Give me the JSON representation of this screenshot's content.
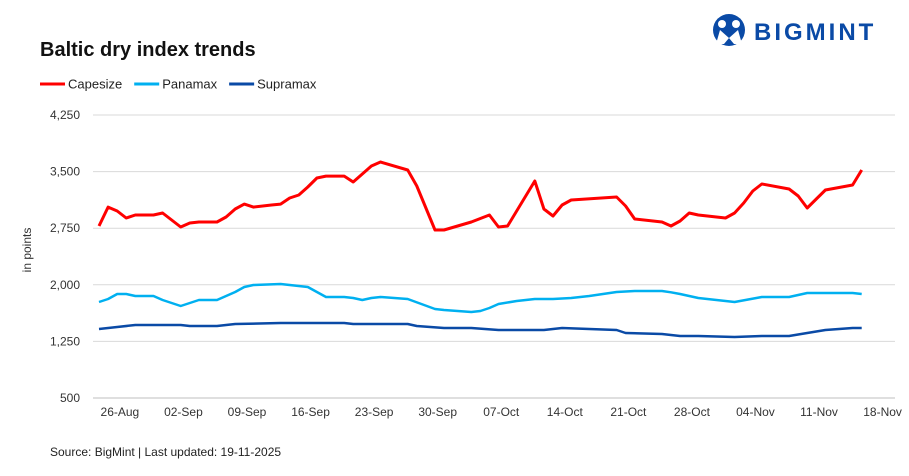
{
  "brand": {
    "name": "BIGMINT",
    "color": "#0a4aa6"
  },
  "chart_data": {
    "type": "line",
    "title": "Baltic dry index trends",
    "xlabel": "",
    "ylabel": "in points",
    "ylim": [
      500,
      4250
    ],
    "yticks": [
      500,
      1250,
      2000,
      2750,
      3500,
      4250
    ],
    "ytick_labels": [
      "500",
      "1,250",
      "2,000",
      "2,750",
      "3,500",
      "4,250"
    ],
    "x_unit": "days from first observation",
    "xlim": [
      0,
      86
    ],
    "xticks": [
      2.3,
      9.3,
      16.3,
      23.3,
      30.3,
      37.3,
      44.3,
      51.3,
      58.3,
      65.3,
      72.3,
      79.3,
      86.3
    ],
    "xtick_labels": [
      "26-Aug",
      "02-Sep",
      "09-Sep",
      "16-Sep",
      "23-Sep",
      "30-Sep",
      "07-Oct",
      "14-Oct",
      "21-Oct",
      "28-Oct",
      "04-Nov",
      "11-Nov",
      "18-Nov"
    ],
    "grid": "horizontal",
    "legend_position": "top-left",
    "series": [
      {
        "name": "Capesize",
        "color": "#ff0000",
        "points": [
          [
            0,
            2779
          ],
          [
            1,
            3030
          ],
          [
            2,
            2978
          ],
          [
            3,
            2885
          ],
          [
            4,
            2925
          ],
          [
            6,
            2925
          ],
          [
            7,
            2951
          ],
          [
            9,
            2766
          ],
          [
            10,
            2819
          ],
          [
            11,
            2832
          ],
          [
            13,
            2832
          ],
          [
            14,
            2898
          ],
          [
            15,
            3004
          ],
          [
            16,
            3070
          ],
          [
            17,
            3030
          ],
          [
            19,
            3057
          ],
          [
            20,
            3070
          ],
          [
            21,
            3150
          ],
          [
            22,
            3190
          ],
          [
            23,
            3296
          ],
          [
            24,
            3415
          ],
          [
            25,
            3441
          ],
          [
            27,
            3441
          ],
          [
            28,
            3362
          ],
          [
            29,
            3468
          ],
          [
            30,
            3574
          ],
          [
            31,
            3627
          ],
          [
            34,
            3521
          ],
          [
            35,
            3309
          ],
          [
            37,
            2726
          ],
          [
            38,
            2726
          ],
          [
            41,
            2832
          ],
          [
            43,
            2925
          ],
          [
            44,
            2766
          ],
          [
            45,
            2779
          ],
          [
            48,
            3375
          ],
          [
            49,
            3004
          ],
          [
            50,
            2912
          ],
          [
            51,
            3057
          ],
          [
            52,
            3124
          ],
          [
            57,
            3163
          ],
          [
            58,
            3044
          ],
          [
            59,
            2872
          ],
          [
            62,
            2832
          ],
          [
            63,
            2779
          ],
          [
            64,
            2845
          ],
          [
            65,
            2951
          ],
          [
            66,
            2925
          ],
          [
            69,
            2885
          ],
          [
            70,
            2951
          ],
          [
            71,
            3084
          ],
          [
            72,
            3243
          ],
          [
            73,
            3336
          ],
          [
            76,
            3269
          ],
          [
            77,
            3177
          ],
          [
            78,
            3018
          ],
          [
            79,
            3137
          ],
          [
            80,
            3256
          ],
          [
            83,
            3322
          ],
          [
            84,
            3521
          ]
        ]
      },
      {
        "name": "Panamax",
        "color": "#00b0f0",
        "points": [
          [
            0,
            1772
          ],
          [
            1,
            1812
          ],
          [
            2,
            1878
          ],
          [
            3,
            1878
          ],
          [
            4,
            1851
          ],
          [
            6,
            1851
          ],
          [
            7,
            1798
          ],
          [
            9,
            1719
          ],
          [
            11,
            1798
          ],
          [
            13,
            1798
          ],
          [
            15,
            1905
          ],
          [
            16,
            1971
          ],
          [
            17,
            1997
          ],
          [
            20,
            2010
          ],
          [
            23,
            1971
          ],
          [
            24,
            1905
          ],
          [
            25,
            1838
          ],
          [
            27,
            1838
          ],
          [
            28,
            1825
          ],
          [
            29,
            1798
          ],
          [
            30,
            1825
          ],
          [
            31,
            1838
          ],
          [
            34,
            1812
          ],
          [
            37,
            1679
          ],
          [
            38,
            1666
          ],
          [
            41,
            1640
          ],
          [
            42,
            1653
          ],
          [
            43,
            1692
          ],
          [
            44,
            1745
          ],
          [
            46,
            1785
          ],
          [
            48,
            1812
          ],
          [
            50,
            1812
          ],
          [
            52,
            1825
          ],
          [
            54,
            1851
          ],
          [
            57,
            1905
          ],
          [
            59,
            1918
          ],
          [
            62,
            1918
          ],
          [
            63,
            1900
          ],
          [
            64,
            1878
          ],
          [
            66,
            1825
          ],
          [
            70,
            1772
          ],
          [
            73,
            1838
          ],
          [
            76,
            1838
          ],
          [
            78,
            1891
          ],
          [
            83,
            1891
          ],
          [
            84,
            1878
          ]
        ]
      },
      {
        "name": "Supramax",
        "color": "#0a4aa6",
        "points": [
          [
            0,
            1414
          ],
          [
            2,
            1441
          ],
          [
            4,
            1467
          ],
          [
            9,
            1467
          ],
          [
            10,
            1454
          ],
          [
            13,
            1454
          ],
          [
            15,
            1480
          ],
          [
            20,
            1494
          ],
          [
            27,
            1494
          ],
          [
            28,
            1480
          ],
          [
            34,
            1480
          ],
          [
            35,
            1454
          ],
          [
            38,
            1428
          ],
          [
            41,
            1428
          ],
          [
            44,
            1401
          ],
          [
            49,
            1401
          ],
          [
            51,
            1428
          ],
          [
            54,
            1414
          ],
          [
            57,
            1401
          ],
          [
            58,
            1361
          ],
          [
            62,
            1348
          ],
          [
            63,
            1335
          ],
          [
            64,
            1321
          ],
          [
            66,
            1321
          ],
          [
            70,
            1308
          ],
          [
            73,
            1321
          ],
          [
            76,
            1321
          ],
          [
            78,
            1361
          ],
          [
            80,
            1401
          ],
          [
            83,
            1428
          ],
          [
            84,
            1428
          ]
        ]
      }
    ],
    "source": "Source: BigMint | Last updated: 19-11-2025"
  }
}
